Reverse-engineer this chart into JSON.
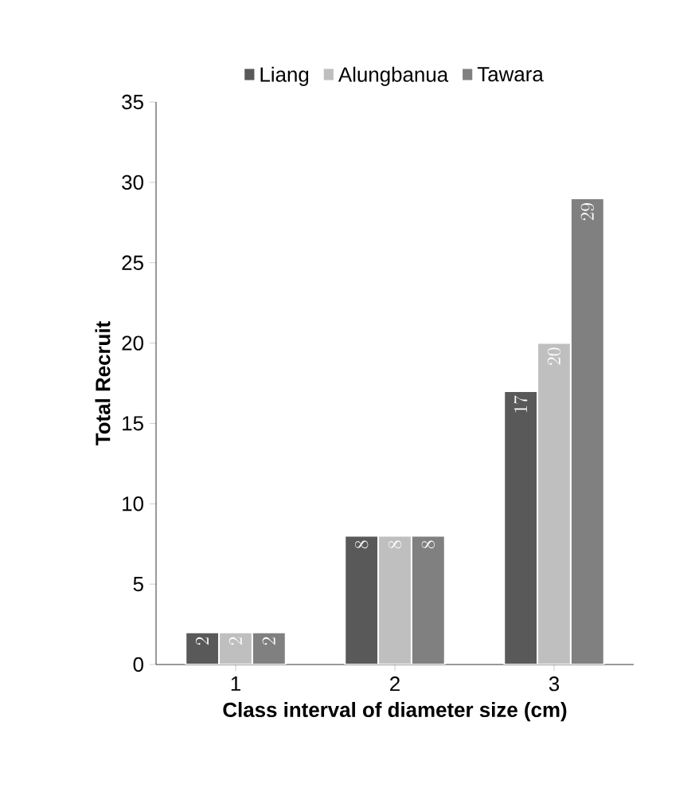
{
  "chart_data": {
    "type": "bar",
    "xlabel": "Class interval of diameter size (cm)",
    "ylabel": "Total Recruit",
    "categories": [
      "1",
      "2",
      "3"
    ],
    "series": [
      {
        "name": "Liang",
        "color": "#595959",
        "values": [
          2,
          8,
          17
        ]
      },
      {
        "name": "Alungbanua",
        "color": "#bfbfbf",
        "values": [
          2,
          8,
          20
        ]
      },
      {
        "name": "Tawara",
        "color": "#808080",
        "values": [
          2,
          8,
          29
        ]
      }
    ],
    "ylim": [
      0,
      35
    ],
    "yticks": [
      0,
      5,
      10,
      15,
      20,
      25,
      30,
      35
    ],
    "data_labels": true,
    "legend": "top",
    "grid": false
  }
}
